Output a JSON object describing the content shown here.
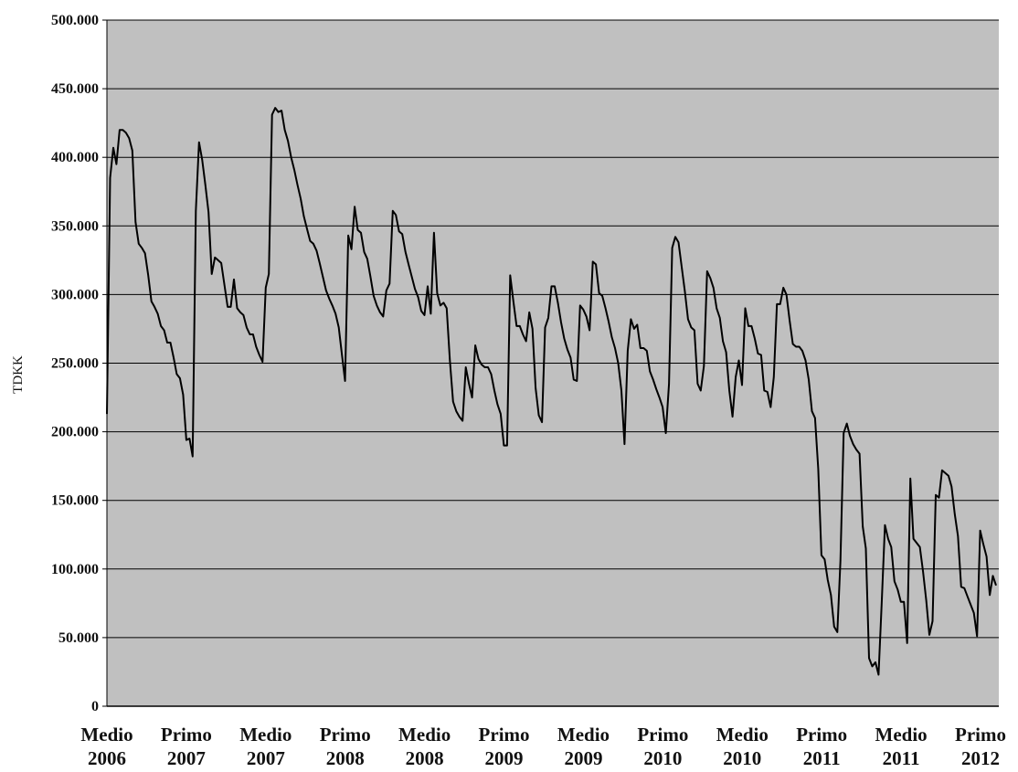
{
  "chart_data": {
    "type": "line",
    "ylabel": "TDKK",
    "xlabel": "",
    "ylim": [
      0,
      500000
    ],
    "y_ticks": [
      {
        "value": 0,
        "label": "0"
      },
      {
        "value": 50000,
        "label": "50.000"
      },
      {
        "value": 100000,
        "label": "100.000"
      },
      {
        "value": 150000,
        "label": "150.000"
      },
      {
        "value": 200000,
        "label": "200.000"
      },
      {
        "value": 250000,
        "label": "250.000"
      },
      {
        "value": 300000,
        "label": "300.000"
      },
      {
        "value": 350000,
        "label": "350.000"
      },
      {
        "value": 400000,
        "label": "400.000"
      },
      {
        "value": 450000,
        "label": "450.000"
      },
      {
        "value": 500000,
        "label": "500.000"
      }
    ],
    "x_ticks": [
      {
        "line1": "Medio",
        "line2": "2006"
      },
      {
        "line1": "Primo",
        "line2": "2007"
      },
      {
        "line1": "Medio",
        "line2": "2007"
      },
      {
        "line1": "Primo",
        "line2": "2008"
      },
      {
        "line1": "Medio",
        "line2": "2008"
      },
      {
        "line1": "Primo",
        "line2": "2009"
      },
      {
        "line1": "Medio",
        "line2": "2009"
      },
      {
        "line1": "Primo",
        "line2": "2010"
      },
      {
        "line1": "Medio",
        "line2": "2010"
      },
      {
        "line1": "Primo",
        "line2": "2011"
      },
      {
        "line1": "Medio",
        "line2": "2011"
      },
      {
        "line1": "Primo",
        "line2": "2012"
      }
    ],
    "grid": true,
    "legend": "none",
    "colors": {
      "plot_background": "#c0c0c0",
      "gridline": "#000000",
      "line": "#000000"
    },
    "series": [
      {
        "values": [
          213000,
          385000,
          407000,
          395000,
          420000,
          420000,
          418000,
          414000,
          405000,
          353000,
          337000,
          334000,
          330000,
          314000,
          295000,
          291000,
          286000,
          277000,
          274000,
          265000,
          265000,
          254000,
          242000,
          239000,
          227000,
          194000,
          195000,
          182000,
          361000,
          411000,
          398000,
          380000,
          360000,
          315000,
          327000,
          325000,
          323000,
          307000,
          291000,
          291000,
          311000,
          290000,
          287000,
          285000,
          276000,
          271000,
          271000,
          262000,
          256000,
          251000,
          305000,
          315000,
          431000,
          436000,
          433000,
          434000,
          420000,
          412000,
          400000,
          391000,
          380000,
          370000,
          357000,
          348000,
          339000,
          337000,
          332000,
          323000,
          313000,
          303000,
          297000,
          292000,
          286000,
          276000,
          256000,
          237000,
          343000,
          333000,
          364000,
          347000,
          345000,
          331000,
          326000,
          313000,
          299000,
          292000,
          287000,
          284000,
          303000,
          308000,
          361000,
          358000,
          346000,
          344000,
          331000,
          322000,
          313000,
          304000,
          298000,
          288000,
          285000,
          306000,
          286000,
          345000,
          301000,
          292000,
          294000,
          290000,
          252000,
          222000,
          215000,
          211000,
          208000,
          247000,
          235000,
          225000,
          263000,
          253000,
          249000,
          247000,
          247000,
          242000,
          230000,
          220000,
          213000,
          190000,
          190000,
          314000,
          295000,
          277000,
          277000,
          271000,
          266000,
          287000,
          275000,
          232000,
          212000,
          207000,
          276000,
          283000,
          306000,
          306000,
          294000,
          280000,
          268000,
          260000,
          254000,
          238000,
          237000,
          292000,
          289000,
          284000,
          274000,
          324000,
          322000,
          301000,
          299000,
          290000,
          280000,
          269000,
          261000,
          250000,
          230000,
          191000,
          259000,
          282000,
          275000,
          278000,
          261000,
          261000,
          259000,
          244000,
          238000,
          231000,
          225000,
          218000,
          199000,
          235000,
          334000,
          342000,
          338000,
          320000,
          302000,
          282000,
          276000,
          274000,
          235000,
          230000,
          248000,
          317000,
          312000,
          305000,
          290000,
          283000,
          266000,
          258000,
          230000,
          211000,
          240000,
          252000,
          234000,
          290000,
          277000,
          277000,
          268000,
          257000,
          256000,
          230000,
          229000,
          218000,
          240000,
          293000,
          293000,
          305000,
          300000,
          281000,
          264000,
          262000,
          262000,
          259000,
          252000,
          238000,
          215000,
          210000,
          173000,
          110000,
          107000,
          92000,
          81000,
          58000,
          54000,
          106000,
          199000,
          206000,
          197000,
          191000,
          187000,
          184000,
          131000,
          115000,
          35000,
          29000,
          32000,
          23000,
          76000,
          132000,
          122000,
          116000,
          91000,
          85000,
          76000,
          76000,
          46000,
          166000,
          122000,
          119000,
          116000,
          98000,
          77000,
          52000,
          62000,
          154000,
          152000,
          172000,
          170000,
          168000,
          160000,
          140000,
          124000,
          87000,
          86000,
          80000,
          74000,
          68000,
          51000,
          128000,
          118000,
          109000,
          81000,
          95000,
          88000
        ]
      }
    ]
  }
}
